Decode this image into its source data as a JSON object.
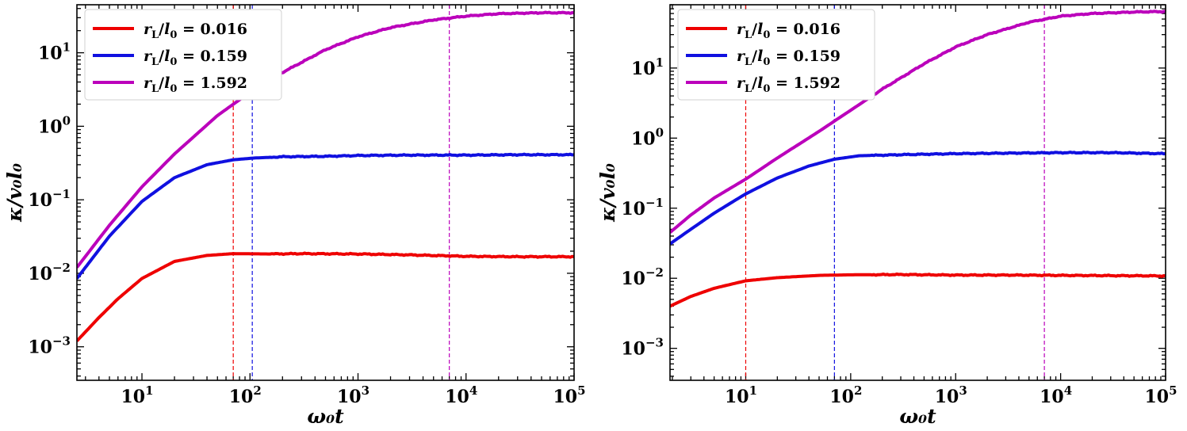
{
  "chart_data": [
    {
      "type": "line",
      "panel": "left",
      "xscale": "log",
      "yscale": "log",
      "xlim": [
        2.5,
        100000
      ],
      "ylim": [
        0.00035,
        45
      ],
      "xlabel": "ω₀t",
      "ylabel": "κ/v₀l₀",
      "xticks": [
        {
          "value": 10,
          "base": "10",
          "exp": "1"
        },
        {
          "value": 100,
          "base": "10",
          "exp": "2"
        },
        {
          "value": 1000,
          "base": "10",
          "exp": "3"
        },
        {
          "value": 10000,
          "base": "10",
          "exp": "4"
        },
        {
          "value": 100000,
          "base": "10",
          "exp": "5"
        }
      ],
      "yticks": [
        {
          "value": 0.001,
          "base": "10",
          "exp": "−3"
        },
        {
          "value": 0.01,
          "base": "10",
          "exp": "−2"
        },
        {
          "value": 0.1,
          "base": "10",
          "exp": "−1"
        },
        {
          "value": 1,
          "base": "10",
          "exp": "0"
        },
        {
          "value": 10,
          "base": "10",
          "exp": "1"
        }
      ],
      "legend_position": "upper-left",
      "series": [
        {
          "name": "r_L/l_0 = 0.016",
          "label_value": "0.016",
          "color": "#ee0000",
          "x": [
            2.5,
            4,
            6,
            10,
            20,
            40,
            70,
            150,
            300,
            1000,
            3000,
            10000,
            30000,
            100000
          ],
          "y": [
            0.0012,
            0.0025,
            0.0045,
            0.0085,
            0.0145,
            0.0175,
            0.0185,
            0.0183,
            0.0185,
            0.0183,
            0.0178,
            0.017,
            0.0168,
            0.0168
          ],
          "vline": 70
        },
        {
          "name": "r_L/l_0 = 0.159",
          "label_value": "0.159",
          "color": "#1010e0",
          "x": [
            2.5,
            5,
            10,
            20,
            40,
            70,
            110,
            200,
            500,
            1000,
            3000,
            10000,
            30000,
            100000
          ],
          "y": [
            0.0085,
            0.032,
            0.095,
            0.2,
            0.3,
            0.35,
            0.37,
            0.385,
            0.39,
            0.4,
            0.405,
            0.405,
            0.41,
            0.41
          ],
          "vline": 105
        },
        {
          "name": "r_L/l_0 = 1.592",
          "label_value": "1.592",
          "color": "#bb00bb",
          "x": [
            2.5,
            5,
            10,
            20,
            50,
            100,
            200,
            500,
            1000,
            2000,
            5000,
            10000,
            20000,
            50000,
            100000
          ],
          "y": [
            0.012,
            0.045,
            0.15,
            0.42,
            1.4,
            2.9,
            5.4,
            11,
            16.5,
            22,
            28,
            31.5,
            34,
            35,
            35
          ],
          "vline": 7000
        }
      ]
    },
    {
      "type": "line",
      "panel": "right",
      "xscale": "log",
      "yscale": "log",
      "xlim": [
        1.9,
        100000
      ],
      "ylim": [
        0.00035,
        80
      ],
      "xlabel": "ω₀t",
      "ylabel": "κ/v₀l₀",
      "xticks": [
        {
          "value": 10,
          "base": "10",
          "exp": "1"
        },
        {
          "value": 100,
          "base": "10",
          "exp": "2"
        },
        {
          "value": 1000,
          "base": "10",
          "exp": "3"
        },
        {
          "value": 10000,
          "base": "10",
          "exp": "4"
        },
        {
          "value": 100000,
          "base": "10",
          "exp": "5"
        }
      ],
      "yticks": [
        {
          "value": 0.001,
          "base": "10",
          "exp": "−3"
        },
        {
          "value": 0.01,
          "base": "10",
          "exp": "−2"
        },
        {
          "value": 0.1,
          "base": "10",
          "exp": "−1"
        },
        {
          "value": 1,
          "base": "10",
          "exp": "0"
        },
        {
          "value": 10,
          "base": "10",
          "exp": "1"
        }
      ],
      "legend_position": "upper-left",
      "series": [
        {
          "name": "r_L/l_0 = 0.016",
          "label_value": "0.016",
          "color": "#ee0000",
          "x": [
            1.9,
            3,
            5,
            10,
            20,
            50,
            100,
            300,
            1000,
            3000,
            10000,
            30000,
            100000
          ],
          "y": [
            0.004,
            0.0055,
            0.0072,
            0.0092,
            0.0102,
            0.011,
            0.0112,
            0.0113,
            0.0111,
            0.0111,
            0.011,
            0.0109,
            0.0108
          ],
          "vline": 10
        },
        {
          "name": "r_L/l_0 = 0.159",
          "label_value": "0.159",
          "color": "#1010e0",
          "x": [
            1.9,
            3,
            5,
            10,
            20,
            40,
            70,
            120,
            300,
            1000,
            3000,
            10000,
            30000,
            100000
          ],
          "y": [
            0.031,
            0.05,
            0.085,
            0.16,
            0.27,
            0.4,
            0.5,
            0.56,
            0.58,
            0.6,
            0.61,
            0.62,
            0.62,
            0.6
          ],
          "vline": 70
        },
        {
          "name": "r_L/l_0 = 1.592",
          "label_value": "1.592",
          "color": "#bb00bb",
          "x": [
            1.9,
            3,
            5,
            10,
            20,
            50,
            100,
            200,
            500,
            1000,
            2000,
            5000,
            10000,
            20000,
            50000,
            100000
          ],
          "y": [
            0.045,
            0.08,
            0.14,
            0.26,
            0.52,
            1.25,
            2.5,
            5,
            11.5,
            20,
            30,
            45,
            55,
            60,
            63,
            64
          ],
          "vline": 7000
        }
      ]
    }
  ]
}
